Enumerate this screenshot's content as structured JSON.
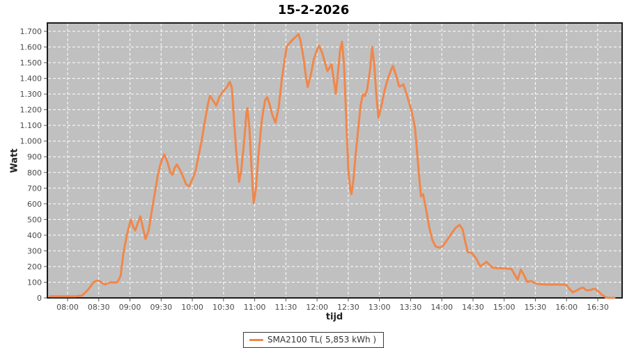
{
  "chart_data": {
    "type": "line",
    "title": "15-2-2026",
    "xlabel": "tijd",
    "ylabel": "Watt",
    "ylim": [
      0,
      1700
    ],
    "grid": true,
    "legend_position": "bottom-center",
    "colors": {
      "series": "#F0874B",
      "plot_background": "#C0C0C0",
      "gridline": "#FFFFFF",
      "plot_border": "#1a1a1a",
      "tick_text": "#4a4a4a",
      "tick_mark": "#555555"
    },
    "yticks": [
      "0",
      "100",
      "200",
      "300",
      "400",
      "500",
      "600",
      "700",
      "800",
      "900",
      "1.000",
      "1.100",
      "1.200",
      "1.300",
      "1.400",
      "1.500",
      "1.600",
      "1.700"
    ],
    "xticks": [
      "08:00",
      "08:30",
      "09:00",
      "09:30",
      "10:00",
      "10:30",
      "11:00",
      "11:30",
      "12:00",
      "12:30",
      "13:00",
      "13:30",
      "14:00",
      "14:30",
      "15:00",
      "15:30",
      "16:00",
      "16:30"
    ],
    "series": [
      {
        "name": "SMA2100 TL( 5,853 kWh )",
        "color": "#F0874B",
        "points": [
          [
            "07:43",
            10
          ],
          [
            "07:50",
            10
          ],
          [
            "08:00",
            10
          ],
          [
            "08:08",
            10
          ],
          [
            "08:14",
            15
          ],
          [
            "08:18",
            40
          ],
          [
            "08:22",
            72
          ],
          [
            "08:25",
            100
          ],
          [
            "08:28",
            110
          ],
          [
            "08:31",
            106
          ],
          [
            "08:34",
            92
          ],
          [
            "08:36",
            85
          ],
          [
            "08:39",
            93
          ],
          [
            "08:42",
            100
          ],
          [
            "08:45",
            97
          ],
          [
            "08:48",
            100
          ],
          [
            "08:51",
            140
          ],
          [
            "08:54",
            300
          ],
          [
            "08:57",
            400
          ],
          [
            "09:00",
            478
          ],
          [
            "09:01",
            500
          ],
          [
            "09:03",
            455
          ],
          [
            "09:05",
            430
          ],
          [
            "09:07",
            468
          ],
          [
            "09:10",
            520
          ],
          [
            "09:12",
            462
          ],
          [
            "09:15",
            375
          ],
          [
            "09:18",
            430
          ],
          [
            "09:21",
            555
          ],
          [
            "09:24",
            670
          ],
          [
            "09:27",
            790
          ],
          [
            "09:30",
            868
          ],
          [
            "09:33",
            915
          ],
          [
            "09:36",
            868
          ],
          [
            "09:39",
            800
          ],
          [
            "09:41",
            785
          ],
          [
            "09:43",
            830
          ],
          [
            "09:45",
            850
          ],
          [
            "09:48",
            818
          ],
          [
            "09:51",
            775
          ],
          [
            "09:54",
            725
          ],
          [
            "09:57",
            712
          ],
          [
            "10:00",
            756
          ],
          [
            "10:03",
            805
          ],
          [
            "10:06",
            905
          ],
          [
            "10:09",
            1005
          ],
          [
            "10:12",
            1125
          ],
          [
            "10:15",
            1235
          ],
          [
            "10:17",
            1290
          ],
          [
            "10:20",
            1258
          ],
          [
            "10:23",
            1226
          ],
          [
            "10:26",
            1282
          ],
          [
            "10:30",
            1320
          ],
          [
            "10:33",
            1342
          ],
          [
            "10:36",
            1378
          ],
          [
            "10:38",
            1340
          ],
          [
            "10:40",
            1150
          ],
          [
            "10:42",
            950
          ],
          [
            "10:45",
            740
          ],
          [
            "10:47",
            810
          ],
          [
            "10:50",
            1010
          ],
          [
            "10:52",
            1180
          ],
          [
            "10:53",
            1210
          ],
          [
            "10:55",
            1080
          ],
          [
            "10:57",
            820
          ],
          [
            "10:59",
            605
          ],
          [
            "11:01",
            690
          ],
          [
            "11:04",
            940
          ],
          [
            "11:07",
            1140
          ],
          [
            "11:10",
            1260
          ],
          [
            "11:12",
            1280
          ],
          [
            "11:14",
            1242
          ],
          [
            "11:17",
            1165
          ],
          [
            "11:20",
            1118
          ],
          [
            "11:23",
            1210
          ],
          [
            "11:26",
            1390
          ],
          [
            "11:29",
            1530
          ],
          [
            "11:31",
            1605
          ],
          [
            "11:34",
            1628
          ],
          [
            "11:37",
            1650
          ],
          [
            "11:40",
            1668
          ],
          [
            "11:42",
            1682
          ],
          [
            "11:44",
            1645
          ],
          [
            "11:47",
            1530
          ],
          [
            "11:49",
            1425
          ],
          [
            "11:51",
            1345
          ],
          [
            "11:54",
            1425
          ],
          [
            "11:57",
            1525
          ],
          [
            "12:00",
            1582
          ],
          [
            "12:02",
            1608
          ],
          [
            "12:05",
            1560
          ],
          [
            "12:08",
            1490
          ],
          [
            "12:10",
            1446
          ],
          [
            "12:12",
            1468
          ],
          [
            "12:14",
            1490
          ],
          [
            "12:16",
            1392
          ],
          [
            "12:18",
            1302
          ],
          [
            "12:20",
            1430
          ],
          [
            "12:22",
            1570
          ],
          [
            "12:24",
            1634
          ],
          [
            "12:26",
            1480
          ],
          [
            "12:28",
            1160
          ],
          [
            "12:30",
            820
          ],
          [
            "12:32",
            690
          ],
          [
            "12:33",
            662
          ],
          [
            "12:35",
            752
          ],
          [
            "12:37",
            905
          ],
          [
            "12:40",
            1105
          ],
          [
            "12:42",
            1232
          ],
          [
            "12:44",
            1296
          ],
          [
            "12:46",
            1288
          ],
          [
            "12:48",
            1320
          ],
          [
            "12:51",
            1455
          ],
          [
            "12:53",
            1600
          ],
          [
            "12:55",
            1490
          ],
          [
            "12:57",
            1295
          ],
          [
            "12:59",
            1148
          ],
          [
            "13:02",
            1225
          ],
          [
            "13:05",
            1325
          ],
          [
            "13:08",
            1395
          ],
          [
            "13:11",
            1452
          ],
          [
            "13:13",
            1480
          ],
          [
            "13:16",
            1420
          ],
          [
            "13:19",
            1348
          ],
          [
            "13:21",
            1352
          ],
          [
            "13:23",
            1362
          ],
          [
            "13:26",
            1302
          ],
          [
            "13:29",
            1235
          ],
          [
            "13:31",
            1188
          ],
          [
            "13:34",
            1095
          ],
          [
            "13:36",
            945
          ],
          [
            "13:38",
            790
          ],
          [
            "13:40",
            648
          ],
          [
            "13:42",
            662
          ],
          [
            "13:45",
            560
          ],
          [
            "13:48",
            448
          ],
          [
            "13:51",
            368
          ],
          [
            "13:54",
            328
          ],
          [
            "13:58",
            320
          ],
          [
            "14:01",
            332
          ],
          [
            "14:05",
            368
          ],
          [
            "14:09",
            408
          ],
          [
            "14:13",
            445
          ],
          [
            "14:17",
            465
          ],
          [
            "14:20",
            438
          ],
          [
            "14:23",
            345
          ],
          [
            "14:25",
            292
          ],
          [
            "14:29",
            286
          ],
          [
            "14:33",
            252
          ],
          [
            "14:37",
            200
          ],
          [
            "14:40",
            215
          ],
          [
            "14:43",
            230
          ],
          [
            "14:46",
            210
          ],
          [
            "14:49",
            193
          ],
          [
            "14:54",
            190
          ],
          [
            "15:00",
            188
          ],
          [
            "15:07",
            184
          ],
          [
            "15:10",
            150
          ],
          [
            "15:13",
            116
          ],
          [
            "15:16",
            180
          ],
          [
            "15:19",
            145
          ],
          [
            "15:22",
            103
          ],
          [
            "15:26",
            108
          ],
          [
            "15:29",
            96
          ],
          [
            "15:33",
            88
          ],
          [
            "15:40",
            85
          ],
          [
            "15:48",
            85
          ],
          [
            "15:56",
            85
          ],
          [
            "16:00",
            82
          ],
          [
            "16:02",
            62
          ],
          [
            "16:06",
            36
          ],
          [
            "16:10",
            48
          ],
          [
            "16:13",
            60
          ],
          [
            "16:16",
            66
          ],
          [
            "16:19",
            48
          ],
          [
            "16:23",
            50
          ],
          [
            "16:26",
            58
          ],
          [
            "16:28",
            55
          ],
          [
            "16:31",
            38
          ],
          [
            "16:34",
            20
          ],
          [
            "16:38",
            2
          ],
          [
            "16:41",
            0
          ],
          [
            "16:46",
            0
          ]
        ]
      }
    ]
  }
}
